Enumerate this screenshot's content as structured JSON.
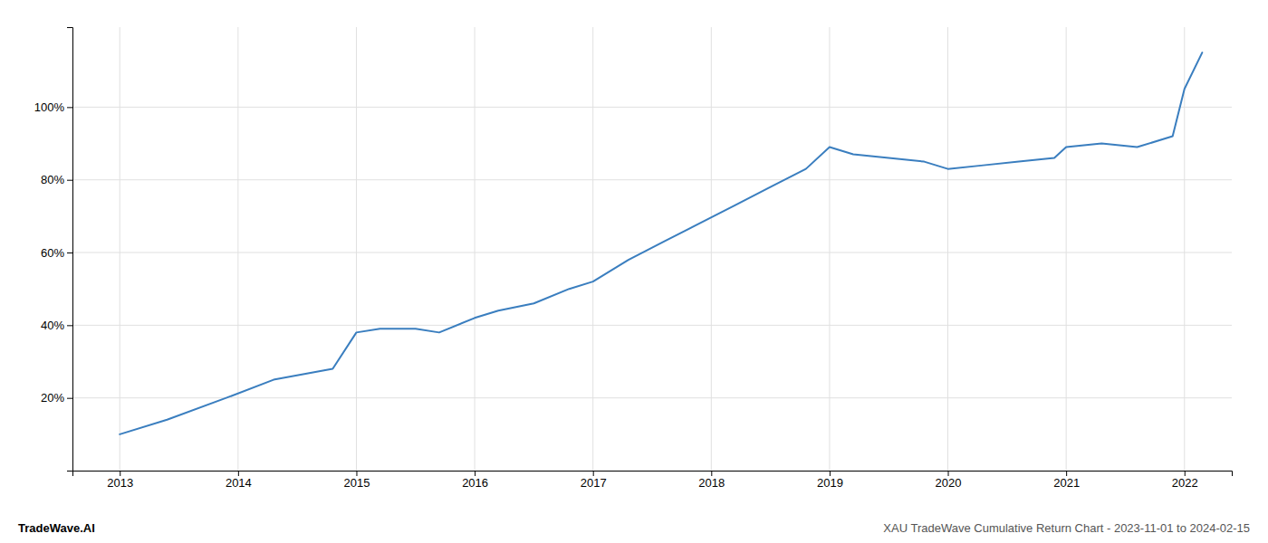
{
  "chart_data": {
    "type": "line",
    "x": [
      2013.0,
      2013.4,
      2013.9,
      2014.3,
      2014.8,
      2015.0,
      2015.2,
      2015.5,
      2015.7,
      2016.0,
      2016.2,
      2016.5,
      2016.8,
      2017.0,
      2017.3,
      2017.6,
      2017.9,
      2018.2,
      2018.5,
      2018.8,
      2019.0,
      2019.2,
      2019.5,
      2019.8,
      2020.0,
      2020.3,
      2020.6,
      2020.9,
      2021.0,
      2021.3,
      2021.6,
      2021.9,
      2022.0,
      2022.15
    ],
    "values": [
      0.1,
      0.14,
      0.2,
      0.25,
      0.28,
      0.38,
      0.39,
      0.39,
      0.38,
      0.42,
      0.44,
      0.46,
      0.5,
      0.52,
      0.58,
      0.63,
      0.68,
      0.73,
      0.78,
      0.83,
      0.89,
      0.87,
      0.86,
      0.85,
      0.83,
      0.84,
      0.85,
      0.86,
      0.89,
      0.9,
      0.89,
      0.92,
      1.05,
      1.15
    ],
    "color": "#3a7ebf",
    "xlim": [
      2012.6,
      2022.4
    ],
    "ylim": [
      0.0,
      1.22
    ],
    "xticks": [
      2013,
      2014,
      2015,
      2016,
      2017,
      2018,
      2019,
      2020,
      2021,
      2022
    ],
    "yticks": [
      {
        "value": 0.2,
        "label": "20%"
      },
      {
        "value": 0.4,
        "label": "40%"
      },
      {
        "value": 0.6,
        "label": "60%"
      },
      {
        "value": 0.8,
        "label": "80%"
      },
      {
        "value": 1.0,
        "label": "100%"
      }
    ],
    "grid": true,
    "annotations": [
      "TradeWave.AI",
      "XAU TradeWave Cumulative Return Chart - 2023-11-01 to 2024-02-15"
    ]
  }
}
